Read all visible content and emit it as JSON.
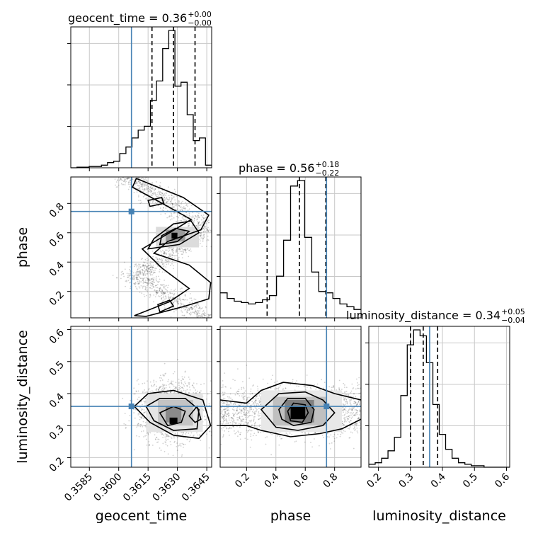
{
  "chart_data": {
    "type": "corner",
    "parameters": [
      "geocent_time",
      "phase",
      "luminosity_distance"
    ],
    "truth_color": "#4682b4",
    "truths": {
      "geocent_time": 0.36065,
      "phase": 0.745,
      "luminosity_distance": 0.36
    },
    "ranges": {
      "geocent_time": [
        0.35755,
        0.36475
      ],
      "phase": [
        0.02,
        0.98
      ],
      "luminosity_distance": [
        0.17,
        0.61
      ]
    },
    "ticks": {
      "geocent_time": {
        "values": [
          0.3585,
          0.36,
          0.3615,
          0.363,
          0.3645
        ],
        "labels": [
          "0.3585",
          "0.3600",
          "0.3615",
          "0.3630",
          "0.3645"
        ]
      },
      "phase": {
        "values": [
          0.2,
          0.4,
          0.6,
          0.8
        ],
        "labels": [
          "0.2",
          "0.4",
          "0.6",
          "0.8"
        ]
      },
      "luminosity_distance": {
        "values": [
          0.2,
          0.3,
          0.4,
          0.5,
          0.6
        ],
        "labels": [
          "0.2",
          "0.3",
          "0.4",
          "0.5",
          "0.6"
        ]
      }
    },
    "marginals": [
      {
        "param": "geocent_time",
        "title": {
          "main": "geocent_time = 0.36",
          "upper": "+0.00",
          "lower": "−0.00"
        },
        "quantiles": [
          0.3617,
          0.3628,
          0.3639
        ],
        "counts": [
          0.0,
          0.5,
          0.5,
          1,
          1,
          2,
          4,
          5,
          11,
          16,
          23,
          29,
          32,
          52,
          67,
          92,
          106,
          63,
          66,
          41,
          21,
          23,
          2
        ]
      },
      {
        "param": "phase",
        "title": {
          "main": "phase = 0.56",
          "upper": "+0.18",
          "lower": "−0.22"
        },
        "quantiles": [
          0.34,
          0.56,
          0.74
        ],
        "counts": [
          18,
          14,
          12,
          11,
          10,
          11,
          13,
          16,
          30,
          56,
          95,
          99,
          58,
          33,
          19,
          18,
          14,
          10,
          8,
          6
        ]
      },
      {
        "param": "luminosity_distance",
        "title": {
          "main": "luminosity_distance = 0.34",
          "upper": "+0.05",
          "lower": "−0.04"
        },
        "quantiles": [
          0.3,
          0.34,
          0.385
        ],
        "counts": [
          2,
          3,
          6,
          11,
          20,
          48,
          82,
          92,
          88,
          70,
          42,
          22,
          12,
          6,
          3,
          2,
          1,
          1,
          0,
          0,
          0,
          0
        ]
      }
    ]
  }
}
